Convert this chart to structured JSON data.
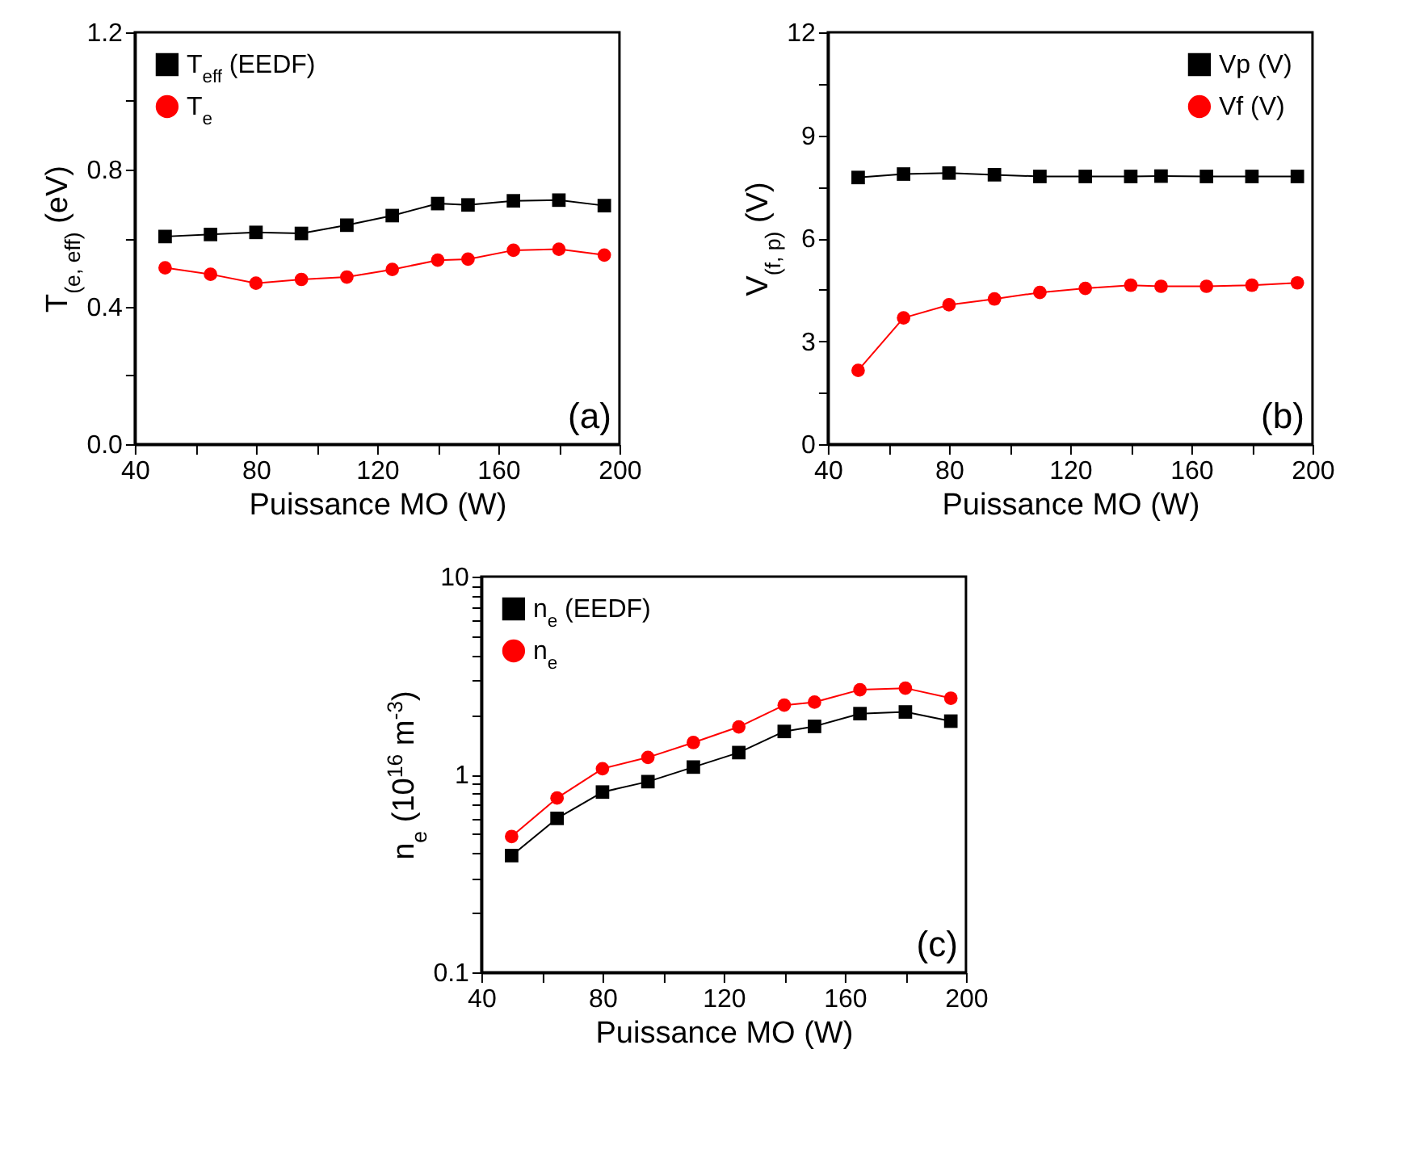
{
  "chart_data": [
    {
      "type": "line",
      "xlabel": "Puissance MO (W)",
      "ylabel": "T$_{(e, eff)}$ (eV)",
      "xlim": [
        40,
        200
      ],
      "ylim": [
        0,
        1.2
      ],
      "xticks": [
        40,
        {
          "value": 60,
          "label": null
        },
        80,
        {
          "value": 100,
          "label": null
        },
        120,
        {
          "value": 140,
          "label": null
        },
        160,
        {
          "value": 180,
          "label": null
        },
        200
      ],
      "yticks": [
        {
          "value": 0,
          "label": "0.0"
        },
        {
          "value": 0.2,
          "label": null
        },
        0.4,
        {
          "value": 0.6,
          "label": null
        },
        0.8,
        {
          "value": 1,
          "label": null
        },
        1.2
      ],
      "x": [
        50,
        65,
        80,
        95,
        110,
        125,
        140,
        150,
        165,
        180,
        195
      ],
      "grid": false,
      "legend": "top left",
      "line_style": "solid",
      "annotations": [
        "(a)"
      ],
      "series": [
        {
          "name": "T$_{eff}$ (EEDF)",
          "color": "#000000",
          "marker": "square",
          "values": [
            0.605,
            0.611,
            0.617,
            0.614,
            0.638,
            0.666,
            0.701,
            0.697,
            0.709,
            0.711,
            0.695
          ]
        },
        {
          "name": "T$_{e}$",
          "color": "#ff0000",
          "marker": "circle",
          "values": [
            0.514,
            0.495,
            0.469,
            0.48,
            0.487,
            0.509,
            0.536,
            0.539,
            0.565,
            0.568,
            0.551
          ]
        }
      ]
    },
    {
      "type": "line",
      "xlabel": "Puissance MO (W)",
      "ylabel": "V$_{(f, p)}$ (V)",
      "xlim": [
        40,
        200
      ],
      "ylim": [
        0,
        12
      ],
      "xticks": [
        40,
        {
          "value": 60,
          "label": null
        },
        80,
        {
          "value": 100,
          "label": null
        },
        120,
        {
          "value": 140,
          "label": null
        },
        160,
        {
          "value": 180,
          "label": null
        },
        200
      ],
      "yticks": [
        0,
        {
          "value": 1.5,
          "label": null
        },
        3,
        {
          "value": 4.5,
          "label": null
        },
        6,
        {
          "value": 7.5,
          "label": null
        },
        9,
        {
          "value": 10.5,
          "label": null
        },
        12
      ],
      "x": [
        50,
        65,
        80,
        95,
        110,
        125,
        140,
        150,
        165,
        180,
        195
      ],
      "grid": false,
      "legend": "top right",
      "line_style": "solid",
      "annotations": [
        "(b)"
      ],
      "series": [
        {
          "name": "Vp (V)",
          "color": "#000000",
          "marker": "square",
          "values": [
            7.77,
            7.87,
            7.9,
            7.85,
            7.8,
            7.8,
            7.8,
            7.81,
            7.8,
            7.8,
            7.8
          ]
        },
        {
          "name": "Vf (V)",
          "color": "#ff0000",
          "marker": "circle",
          "values": [
            2.15,
            3.68,
            4.06,
            4.23,
            4.42,
            4.54,
            4.63,
            4.6,
            4.6,
            4.63,
            4.7
          ]
        }
      ]
    },
    {
      "type": "line",
      "xlabel": "Puissance MO (W)",
      "ylabel": "n$_{e}$ (10$^{16}$ m$^{-3}$)",
      "xlim": [
        40,
        200
      ],
      "ylim": [
        0.1,
        10
      ],
      "log": "y",
      "xticks": [
        40,
        {
          "value": 60,
          "label": null
        },
        80,
        {
          "value": 100,
          "label": null
        },
        120,
        {
          "value": 140,
          "label": null
        },
        160,
        {
          "value": 180,
          "label": null
        },
        200
      ],
      "yticks": [
        0.1,
        {
          "value": 0.2,
          "label": null
        },
        {
          "value": 0.3,
          "label": null
        },
        {
          "value": 0.4,
          "label": null
        },
        {
          "value": 0.5,
          "label": null
        },
        {
          "value": 0.6,
          "label": null
        },
        {
          "value": 0.7,
          "label": null
        },
        {
          "value": 0.8,
          "label": null
        },
        {
          "value": 0.9,
          "label": null
        },
        1,
        {
          "value": 2,
          "label": null
        },
        {
          "value": 3,
          "label": null
        },
        {
          "value": 4,
          "label": null
        },
        {
          "value": 5,
          "label": null
        },
        {
          "value": 6,
          "label": null
        },
        {
          "value": 7,
          "label": null
        },
        {
          "value": 8,
          "label": null
        },
        {
          "value": 9,
          "label": null
        },
        10
      ],
      "x": [
        50,
        65,
        80,
        95,
        110,
        125,
        140,
        150,
        165,
        180,
        195
      ],
      "grid": false,
      "legend": "top left",
      "line_style": "solid",
      "annotations": [
        "(c)"
      ],
      "series": [
        {
          "name": "n$_{e}$ (EEDF)",
          "color": "#000000",
          "marker": "square",
          "values": [
            0.389,
            0.6,
            0.815,
            0.92,
            1.09,
            1.29,
            1.65,
            1.75,
            2.03,
            2.07,
            1.86
          ]
        },
        {
          "name": "n$_{e}$",
          "color": "#ff0000",
          "marker": "circle",
          "values": [
            0.486,
            0.76,
            1.07,
            1.22,
            1.45,
            1.74,
            2.24,
            2.32,
            2.68,
            2.73,
            2.43
          ]
        }
      ]
    }
  ]
}
